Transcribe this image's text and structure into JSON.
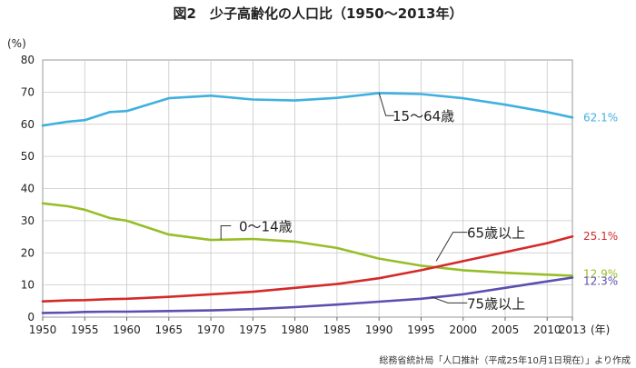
{
  "chart_data": {
    "type": "line",
    "title": "図2　少子高齢化の人口比（1950〜2013年）",
    "ylabel": "(%)",
    "xlabel": "(年)",
    "source": "総務省統計局「人口推計（平成25年10月1日現在）」より作成",
    "ylim": [
      0,
      80
    ],
    "xlim": [
      1950,
      2013
    ],
    "yticks": [
      "0",
      "10",
      "20",
      "30",
      "40",
      "50",
      "60",
      "70",
      "80"
    ],
    "xticks": [
      "1950",
      "1955",
      "1960",
      "1965",
      "1970",
      "1975",
      "1980",
      "1985",
      "1990",
      "1995",
      "2000",
      "2005",
      "2010",
      "2013"
    ],
    "grid": true,
    "x": [
      1950,
      1953,
      1955,
      1958,
      1960,
      1965,
      1970,
      1975,
      1980,
      1985,
      1990,
      1995,
      2000,
      2005,
      2010,
      2013
    ],
    "series": [
      {
        "name": "15〜64歳",
        "color": "#3fb0e0",
        "end_label": "62.1%",
        "values": [
          59.6,
          60.8,
          61.3,
          63.8,
          64.1,
          68.1,
          68.9,
          67.7,
          67.4,
          68.2,
          69.7,
          69.4,
          68.1,
          66.1,
          63.8,
          62.1
        ]
      },
      {
        "name": "0〜14歳",
        "color": "#96be28",
        "end_label": "12.9%",
        "values": [
          35.4,
          34.5,
          33.4,
          30.8,
          30.0,
          25.7,
          24.0,
          24.3,
          23.5,
          21.5,
          18.2,
          16.0,
          14.6,
          13.8,
          13.2,
          12.9
        ]
      },
      {
        "name": "65歳以上",
        "color": "#d42a2a",
        "end_label": "25.1%",
        "values": [
          4.9,
          5.2,
          5.3,
          5.6,
          5.7,
          6.3,
          7.1,
          7.9,
          9.1,
          10.3,
          12.1,
          14.6,
          17.4,
          20.2,
          23.0,
          25.1
        ]
      },
      {
        "name": "75歳以上",
        "color": "#5b4fb0",
        "end_label": "12.3%",
        "values": [
          1.3,
          1.4,
          1.6,
          1.7,
          1.7,
          1.9,
          2.1,
          2.5,
          3.1,
          3.9,
          4.8,
          5.7,
          7.1,
          9.1,
          11.1,
          12.3
        ]
      }
    ]
  }
}
